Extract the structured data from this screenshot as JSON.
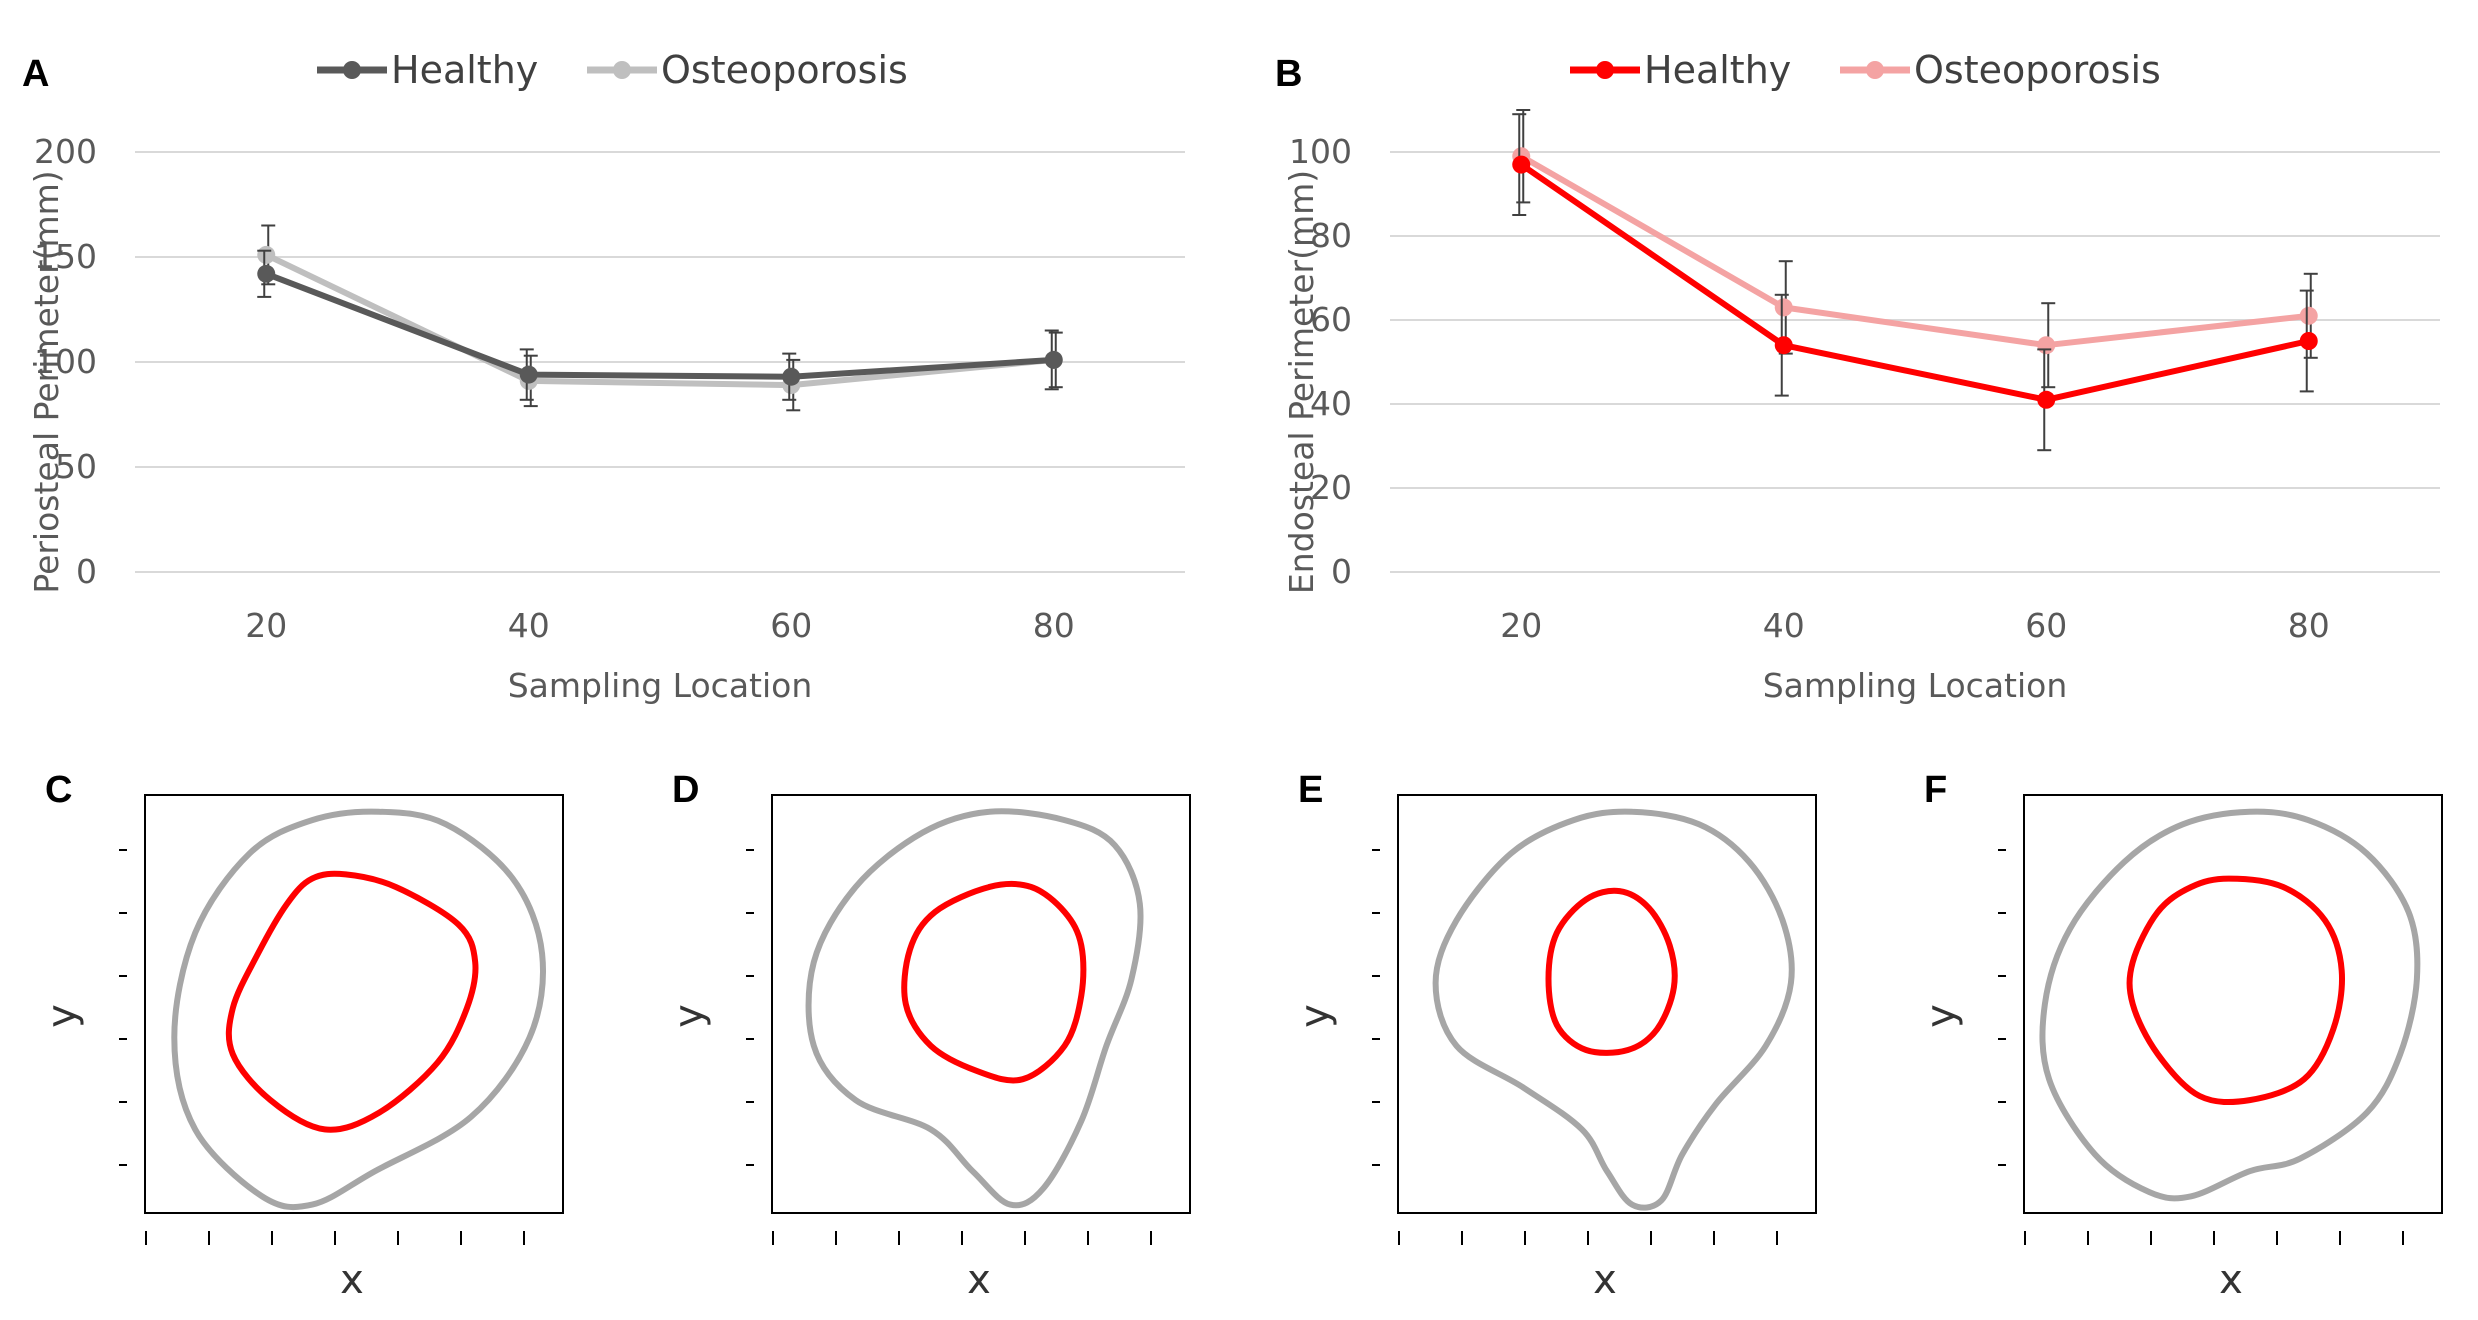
{
  "chart_data": [
    {
      "panel": "A",
      "type": "line",
      "title": "",
      "xlabel": "Sampling Location",
      "ylabel": "Periosteal Perimeter(mm)",
      "categories": [
        "20",
        "40",
        "60",
        "80"
      ],
      "ylim": [
        0,
        200
      ],
      "yticks": [
        "0",
        "50",
        "100",
        "150",
        "200"
      ],
      "grid": true,
      "legend": "top-center",
      "series": [
        {
          "name": "Healthy",
          "color": "#595959",
          "values": [
            142,
            94,
            93,
            101
          ],
          "err": [
            11,
            12,
            11,
            14
          ]
        },
        {
          "name": "Osteoporosis",
          "color": "#bfbfbf",
          "values": [
            151,
            91,
            89,
            101
          ],
          "err": [
            14,
            12,
            12,
            13
          ]
        }
      ]
    },
    {
      "panel": "B",
      "type": "line",
      "title": "",
      "xlabel": "Sampling Location",
      "ylabel": "Endosteal Perimeter(mm)",
      "categories": [
        "20",
        "40",
        "60",
        "80"
      ],
      "ylim": [
        0,
        110
      ],
      "yticks": [
        "0",
        "20",
        "40",
        "60",
        "80",
        "100"
      ],
      "grid": true,
      "legend": "top-center",
      "series": [
        {
          "name": "Healthy",
          "color": "#ff0000",
          "values": [
            97,
            54,
            41,
            55
          ],
          "err": [
            12,
            12,
            12,
            12
          ]
        },
        {
          "name": "Osteoporosis",
          "color": "#f4a3a3",
          "values": [
            99,
            63,
            54,
            61
          ],
          "err": [
            11,
            11,
            10,
            10
          ]
        }
      ]
    },
    {
      "panel": "C",
      "type": "contour",
      "xlabel": "x",
      "ylabel": "y",
      "curves": [
        {
          "name": "periosteal",
          "color": "#a6a6a6"
        },
        {
          "name": "endosteal",
          "color": "#ff0000"
        }
      ]
    },
    {
      "panel": "D",
      "type": "contour",
      "xlabel": "x",
      "ylabel": "y",
      "curves": [
        {
          "name": "periosteal",
          "color": "#a6a6a6"
        },
        {
          "name": "endosteal",
          "color": "#ff0000"
        }
      ]
    },
    {
      "panel": "E",
      "type": "contour",
      "xlabel": "x",
      "ylabel": "y",
      "curves": [
        {
          "name": "periosteal",
          "color": "#a6a6a6"
        },
        {
          "name": "endosteal",
          "color": "#ff0000"
        }
      ]
    },
    {
      "panel": "F",
      "type": "contour",
      "xlabel": "x",
      "ylabel": "y",
      "curves": [
        {
          "name": "periosteal",
          "color": "#a6a6a6"
        },
        {
          "name": "endosteal",
          "color": "#ff0000"
        }
      ]
    }
  ],
  "colors": {
    "grid": "#d9d9d9",
    "errorbar": "#404040",
    "frame": "#000000"
  }
}
